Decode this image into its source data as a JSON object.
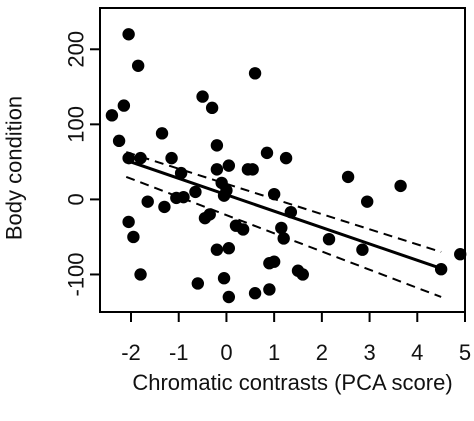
{
  "chart_data": {
    "type": "scatter",
    "title": "",
    "xlabel": "Chromatic contrasts (PCA score)",
    "ylabel": "Body condition",
    "xlim": [
      -2.65,
      5.0
    ],
    "ylim": [
      -150,
      255
    ],
    "xticks": [
      -2,
      -1,
      0,
      1,
      2,
      3,
      4,
      5
    ],
    "yticks": [
      -100,
      0,
      100,
      200
    ],
    "grid": false,
    "legend": "none",
    "point_color": "#000000",
    "points": [
      {
        "x": -2.4,
        "y": 112
      },
      {
        "x": -2.25,
        "y": 78
      },
      {
        "x": -2.15,
        "y": 125
      },
      {
        "x": -2.05,
        "y": 220
      },
      {
        "x": -2.05,
        "y": 55
      },
      {
        "x": -2.05,
        "y": -30
      },
      {
        "x": -1.95,
        "y": -50
      },
      {
        "x": -1.85,
        "y": 178
      },
      {
        "x": -1.8,
        "y": 55
      },
      {
        "x": -1.8,
        "y": -100
      },
      {
        "x": -1.65,
        "y": -3
      },
      {
        "x": -1.35,
        "y": 88
      },
      {
        "x": -1.3,
        "y": -10
      },
      {
        "x": -1.15,
        "y": 55
      },
      {
        "x": -1.05,
        "y": 2
      },
      {
        "x": -0.95,
        "y": 35
      },
      {
        "x": -0.9,
        "y": 3
      },
      {
        "x": -0.65,
        "y": 10
      },
      {
        "x": -0.6,
        "y": -112
      },
      {
        "x": -0.5,
        "y": 137
      },
      {
        "x": -0.45,
        "y": -25
      },
      {
        "x": -0.35,
        "y": -20
      },
      {
        "x": -0.3,
        "y": 122
      },
      {
        "x": -0.2,
        "y": 72
      },
      {
        "x": -0.2,
        "y": 40
      },
      {
        "x": -0.2,
        "y": -67
      },
      {
        "x": -0.1,
        "y": 22
      },
      {
        "x": -0.05,
        "y": -105
      },
      {
        "x": -0.05,
        "y": 5
      },
      {
        "x": 0.0,
        "y": 12
      },
      {
        "x": 0.05,
        "y": 45
      },
      {
        "x": 0.05,
        "y": -65
      },
      {
        "x": 0.05,
        "y": -130
      },
      {
        "x": 0.2,
        "y": -35
      },
      {
        "x": 0.35,
        "y": -40
      },
      {
        "x": 0.45,
        "y": 40
      },
      {
        "x": 0.55,
        "y": 40
      },
      {
        "x": 0.6,
        "y": -125
      },
      {
        "x": 0.6,
        "y": 168
      },
      {
        "x": 0.85,
        "y": 62
      },
      {
        "x": 0.9,
        "y": -85
      },
      {
        "x": 0.9,
        "y": -120
      },
      {
        "x": 1.0,
        "y": -83
      },
      {
        "x": 1.0,
        "y": 7
      },
      {
        "x": 1.15,
        "y": -38
      },
      {
        "x": 1.2,
        "y": -52
      },
      {
        "x": 1.25,
        "y": 55
      },
      {
        "x": 1.35,
        "y": -17
      },
      {
        "x": 1.5,
        "y": -95
      },
      {
        "x": 1.6,
        "y": -100
      },
      {
        "x": 2.15,
        "y": -53
      },
      {
        "x": 2.55,
        "y": 30
      },
      {
        "x": 2.85,
        "y": -67
      },
      {
        "x": 2.95,
        "y": -3
      },
      {
        "x": 3.65,
        "y": 18
      },
      {
        "x": 4.5,
        "y": -93
      },
      {
        "x": 4.9,
        "y": -73
      }
    ],
    "regression": {
      "x0": -2.1,
      "y0": 52,
      "x1": 4.5,
      "y1": -92
    },
    "ci_upper": {
      "x0": -2.1,
      "y0": 63,
      "x1": 4.5,
      "y1": -70
    },
    "ci_lower": {
      "x0": -2.1,
      "y0": 30,
      "x1": 4.5,
      "y1": -130
    }
  }
}
